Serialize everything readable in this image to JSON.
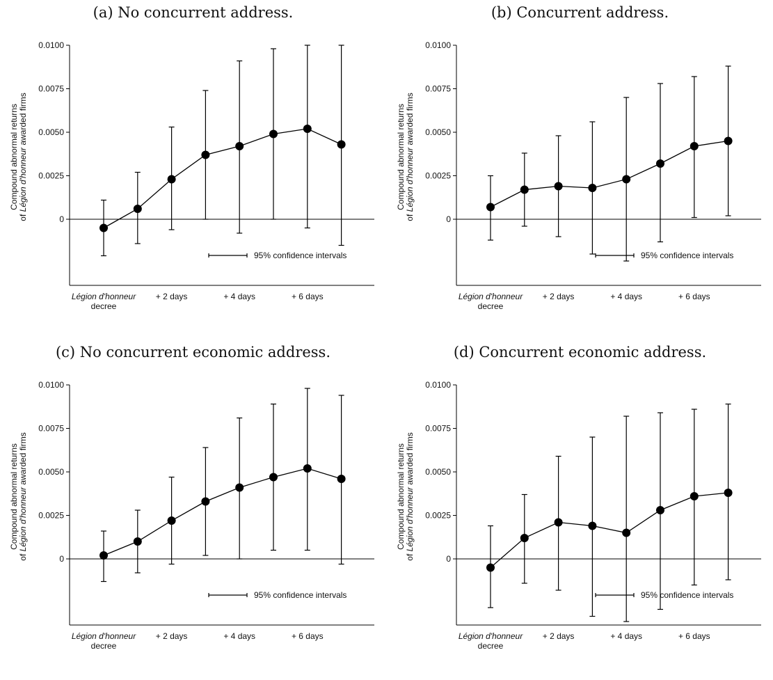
{
  "chart_data": [
    {
      "type": "line",
      "title": "(a) No concurrent address.",
      "ylabel": [
        "Compound abnormal returns",
        "of ",
        "Légion d'honneur",
        " awarded firms"
      ],
      "yticks": [
        "0.0100",
        "0.0075",
        "0.0050",
        "0.0025",
        "0"
      ],
      "ylim": [
        -0.0038,
        0.01
      ],
      "xticks": [
        "Légion d'honneur",
        "decree",
        "+ 2 days",
        "+ 4 days",
        "+ 6 days"
      ],
      "legend": "95% confidence intervals",
      "points": [
        {
          "x": 0,
          "y": -0.0005,
          "lo": -0.0021,
          "hi": 0.0011
        },
        {
          "x": 1,
          "y": 0.0006,
          "lo": -0.0014,
          "hi": 0.0027
        },
        {
          "x": 2,
          "y": 0.0023,
          "lo": -0.0006,
          "hi": 0.0053
        },
        {
          "x": 3,
          "y": 0.0037,
          "lo": 0.0,
          "hi": 0.0074
        },
        {
          "x": 4,
          "y": 0.0042,
          "lo": -0.0008,
          "hi": 0.0091
        },
        {
          "x": 5,
          "y": 0.0049,
          "lo": 0.0,
          "hi": 0.0098
        },
        {
          "x": 6,
          "y": 0.0052,
          "lo": -0.0005,
          "hi": 0.01
        },
        {
          "x": 7,
          "y": 0.0043,
          "lo": -0.0015,
          "hi": 0.01
        }
      ]
    },
    {
      "type": "line",
      "title": "(b) Concurrent address.",
      "ylabel": [
        "Compound abnormal returns",
        "of ",
        "Légion d'honneur",
        " awarded firms"
      ],
      "yticks": [
        "0.0100",
        "0.0075",
        "0.0050",
        "0.0025",
        "0"
      ],
      "ylim": [
        -0.0038,
        0.01
      ],
      "xticks": [
        "Légion d'honneur",
        "decree",
        "+ 2 days",
        "+ 4 days",
        "+ 6 days"
      ],
      "legend": "95% confidence intervals",
      "points": [
        {
          "x": 0,
          "y": 0.0007,
          "lo": -0.0012,
          "hi": 0.0025
        },
        {
          "x": 1,
          "y": 0.0017,
          "lo": -0.0004,
          "hi": 0.0038
        },
        {
          "x": 2,
          "y": 0.0019,
          "lo": -0.001,
          "hi": 0.0048
        },
        {
          "x": 3,
          "y": 0.0018,
          "lo": -0.002,
          "hi": 0.0056
        },
        {
          "x": 4,
          "y": 0.0023,
          "lo": -0.0024,
          "hi": 0.007
        },
        {
          "x": 5,
          "y": 0.0032,
          "lo": -0.0013,
          "hi": 0.0078
        },
        {
          "x": 6,
          "y": 0.0042,
          "lo": 0.0001,
          "hi": 0.0082
        },
        {
          "x": 7,
          "y": 0.0045,
          "lo": 0.0002,
          "hi": 0.0088
        }
      ]
    },
    {
      "type": "line",
      "title": "(c) No concurrent economic address.",
      "ylabel": [
        "Compound abnormal returns",
        "of ",
        "Légion d'honneur",
        " awarded firms"
      ],
      "yticks": [
        "0.0100",
        "0.0075",
        "0.0050",
        "0.0025",
        "0"
      ],
      "ylim": [
        -0.0038,
        0.01
      ],
      "xticks": [
        "Légion d'honneur",
        "decree",
        "+ 2 days",
        "+ 4 days",
        "+ 6 days"
      ],
      "legend": "95% confidence intervals",
      "points": [
        {
          "x": 0,
          "y": 0.0002,
          "lo": -0.0013,
          "hi": 0.0016
        },
        {
          "x": 1,
          "y": 0.001,
          "lo": -0.0008,
          "hi": 0.0028
        },
        {
          "x": 2,
          "y": 0.0022,
          "lo": -0.0003,
          "hi": 0.0047
        },
        {
          "x": 3,
          "y": 0.0033,
          "lo": 0.0002,
          "hi": 0.0064
        },
        {
          "x": 4,
          "y": 0.0041,
          "lo": 0.0,
          "hi": 0.0081
        },
        {
          "x": 5,
          "y": 0.0047,
          "lo": 0.0005,
          "hi": 0.0089
        },
        {
          "x": 6,
          "y": 0.0052,
          "lo": 0.0005,
          "hi": 0.0098
        },
        {
          "x": 7,
          "y": 0.0046,
          "lo": -0.0003,
          "hi": 0.0094
        }
      ]
    },
    {
      "type": "line",
      "title": "(d) Concurrent economic address.",
      "ylabel": [
        "Compound abnormal returns",
        "of ",
        "Légion d'honneur",
        " awarded firms"
      ],
      "yticks": [
        "0.0100",
        "0.0075",
        "0.0050",
        "0.0025",
        "0"
      ],
      "ylim": [
        -0.0038,
        0.01
      ],
      "xticks": [
        "Légion d'honneur",
        "decree",
        "+ 2 days",
        "+ 4 days",
        "+ 6 days"
      ],
      "legend": "95% confidence intervals",
      "points": [
        {
          "x": 0,
          "y": -0.0005,
          "lo": -0.0028,
          "hi": 0.0019
        },
        {
          "x": 1,
          "y": 0.0012,
          "lo": -0.0014,
          "hi": 0.0037
        },
        {
          "x": 2,
          "y": 0.0021,
          "lo": -0.0018,
          "hi": 0.0059
        },
        {
          "x": 3,
          "y": 0.0019,
          "lo": -0.0033,
          "hi": 0.007
        },
        {
          "x": 4,
          "y": 0.0015,
          "lo": -0.0036,
          "hi": 0.0082
        },
        {
          "x": 5,
          "y": 0.0028,
          "lo": -0.0029,
          "hi": 0.0084
        },
        {
          "x": 6,
          "y": 0.0036,
          "lo": -0.0015,
          "hi": 0.0086
        },
        {
          "x": 7,
          "y": 0.0038,
          "lo": -0.0012,
          "hi": 0.0089
        }
      ]
    }
  ]
}
